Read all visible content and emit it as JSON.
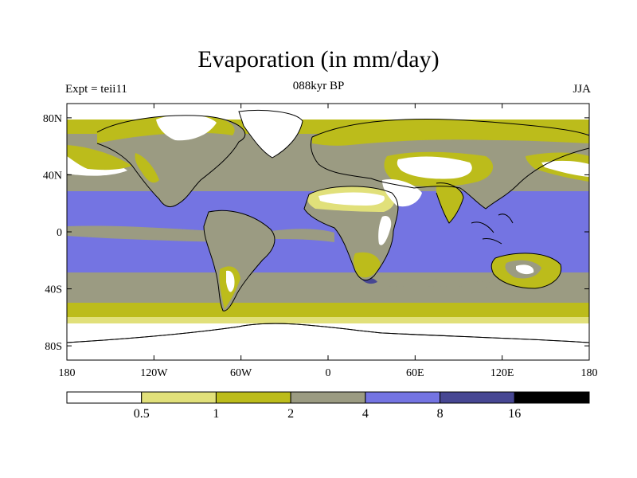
{
  "title": "Evaporation (in mm/day)",
  "left_label": "Expt = teii11",
  "center_label": "088kyr BP",
  "right_label": "JJA",
  "lat_ticks": [
    {
      "value": 80,
      "label": "80N"
    },
    {
      "value": 40,
      "label": "40N"
    },
    {
      "value": 0,
      "label": "0"
    },
    {
      "value": -40,
      "label": "40S"
    },
    {
      "value": -80,
      "label": "80S"
    }
  ],
  "lon_ticks": [
    {
      "value": -180,
      "label": "180"
    },
    {
      "value": -120,
      "label": "120W"
    },
    {
      "value": -60,
      "label": "60W"
    },
    {
      "value": 0,
      "label": "0"
    },
    {
      "value": 60,
      "label": "60E"
    },
    {
      "value": 120,
      "label": "120E"
    },
    {
      "value": 180,
      "label": "180"
    }
  ],
  "colorbar": {
    "colors": [
      "#ffffff",
      "#e1e07a",
      "#bcbc1b",
      "#9b9b82",
      "#7474e2",
      "#474793",
      "#000000"
    ],
    "labels": [
      "0.5",
      "1",
      "2",
      "4",
      "8",
      "16"
    ]
  },
  "map_data": {
    "extent": {
      "lon": [
        -180,
        180
      ],
      "lat": [
        -90,
        90
      ]
    },
    "units": "mm/day",
    "season": "JJA",
    "fields": [
      {
        "level": "2-4",
        "lat": [
          -50,
          70
        ]
      },
      {
        "level": "4-8",
        "lat": [
          -37,
          30
        ]
      }
    ]
  }
}
